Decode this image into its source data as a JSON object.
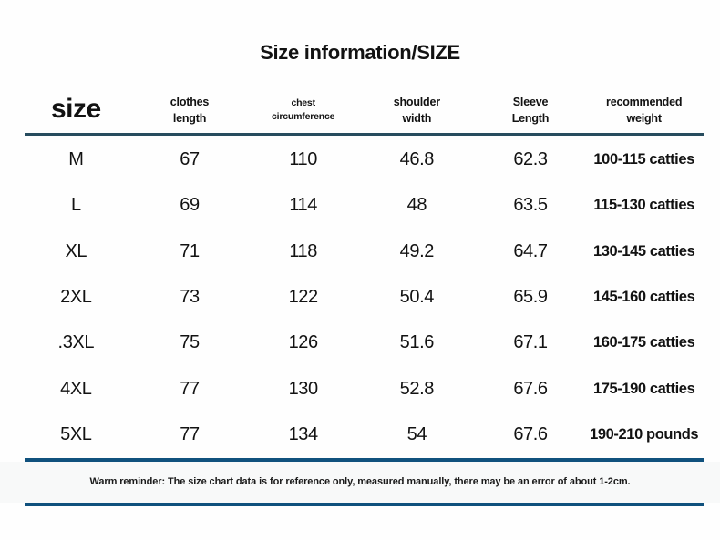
{
  "title": "Size information/SIZE",
  "table": {
    "header": {
      "size_label": "size",
      "columns": [
        {
          "line1": "clothes",
          "line2": "length"
        },
        {
          "line1": "chest",
          "line2": "circumference"
        },
        {
          "line1": "shoulder",
          "line2": "width"
        },
        {
          "line1": "Sleeve",
          "line2": "Length"
        },
        {
          "line1": "recommended",
          "line2": "weight"
        }
      ]
    }
  },
  "chart_data": {
    "type": "table",
    "title": "Size information/SIZE",
    "columns": [
      "size",
      "clothes length",
      "chest circumference",
      "shoulder width",
      "Sleeve Length",
      "recommended weight"
    ],
    "rows": [
      [
        "M",
        "67",
        "110",
        "46.8",
        "62.3",
        "100-115 catties"
      ],
      [
        "L",
        "69",
        "114",
        "48",
        "63.5",
        "115-130 catties"
      ],
      [
        "XL",
        "71",
        "118",
        "49.2",
        "64.7",
        "130-145 catties"
      ],
      [
        "2XL",
        "73",
        "122",
        "50.4",
        "65.9",
        "145-160 catties"
      ],
      [
        ".3XL",
        "75",
        "126",
        "51.6",
        "67.1",
        "160-175 catties"
      ],
      [
        "4XL",
        "77",
        "130",
        "52.8",
        "67.6",
        "175-190 catties"
      ],
      [
        "5XL",
        "77",
        "134",
        "54",
        "67.6",
        "190-210 pounds"
      ]
    ]
  },
  "footer": {
    "reminder": "Warm reminder: The size chart data is for reference only, measured manually, there may be an error of about 1-2cm."
  },
  "colors": {
    "header_rule": "#274c5e",
    "footer_rule": "#10517d",
    "text": "#121212",
    "background": "#fefefe",
    "reminder_band": "#f8f9f9"
  }
}
